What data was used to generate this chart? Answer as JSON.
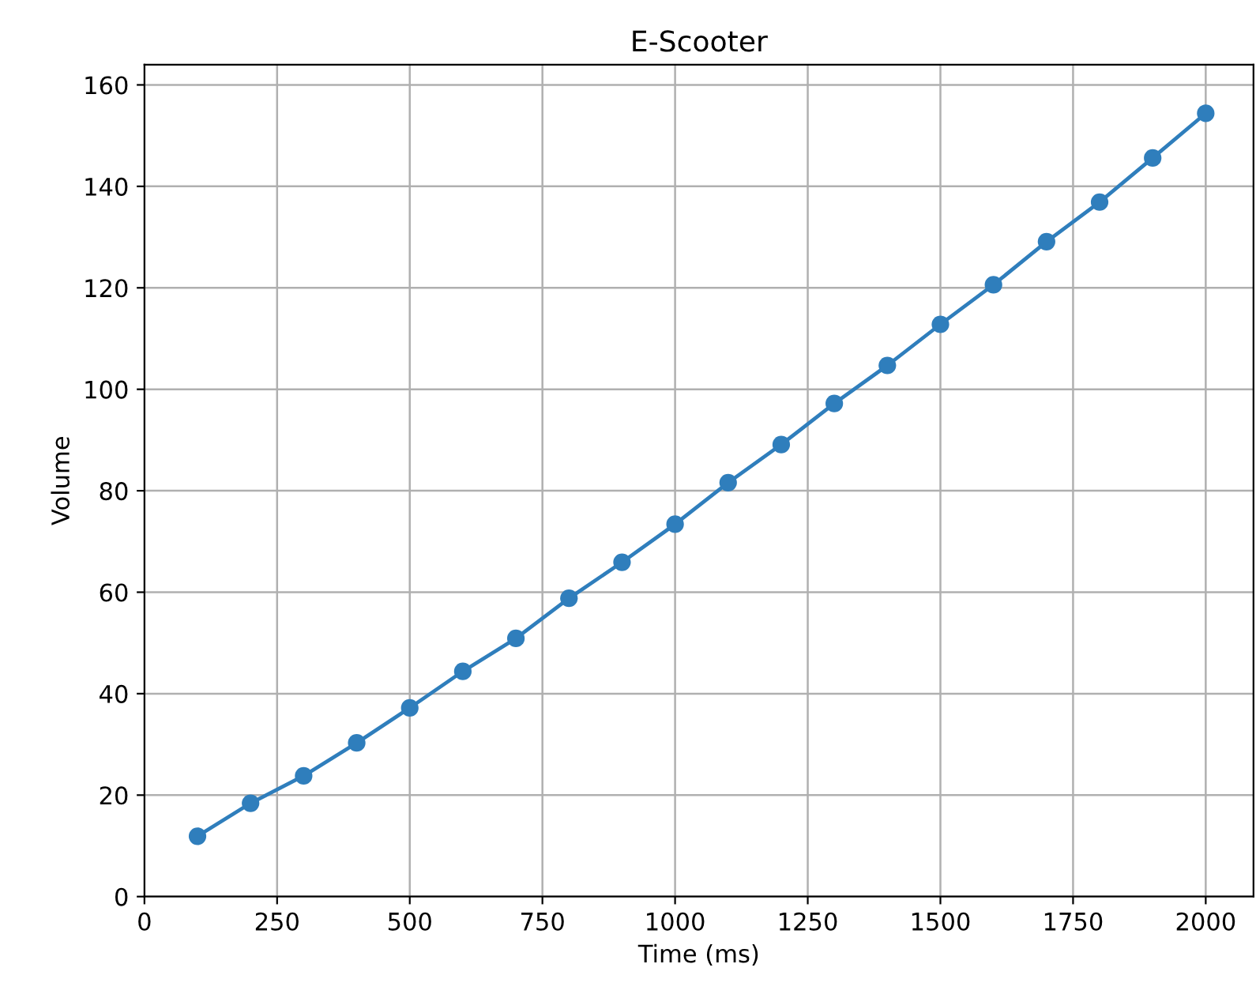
{
  "chart_data": {
    "type": "line",
    "title": "E-Scooter",
    "xlabel": "Time (ms)",
    "ylabel": "Volume",
    "x": [
      100,
      200,
      300,
      400,
      500,
      600,
      700,
      800,
      900,
      1000,
      1100,
      1200,
      1300,
      1400,
      1500,
      1600,
      1700,
      1800,
      1900,
      2000
    ],
    "series": [
      {
        "color": "#2f7ebc",
        "values": [
          11.9,
          18.4,
          23.8,
          30.3,
          37.2,
          44.4,
          50.9,
          58.8,
          65.9,
          73.4,
          81.6,
          89.1,
          97.2,
          104.7,
          112.8,
          120.6,
          129.1,
          136.9,
          145.6,
          154.4
        ]
      }
    ],
    "xlim": [
      0,
      2090
    ],
    "ylim": [
      0,
      164
    ],
    "xticks": [
      0,
      250,
      500,
      750,
      1000,
      1250,
      1500,
      1750,
      2000
    ],
    "yticks": [
      0,
      20,
      40,
      60,
      80,
      100,
      120,
      140,
      160
    ],
    "grid": true,
    "marker": "circle",
    "line_style": "solid"
  }
}
